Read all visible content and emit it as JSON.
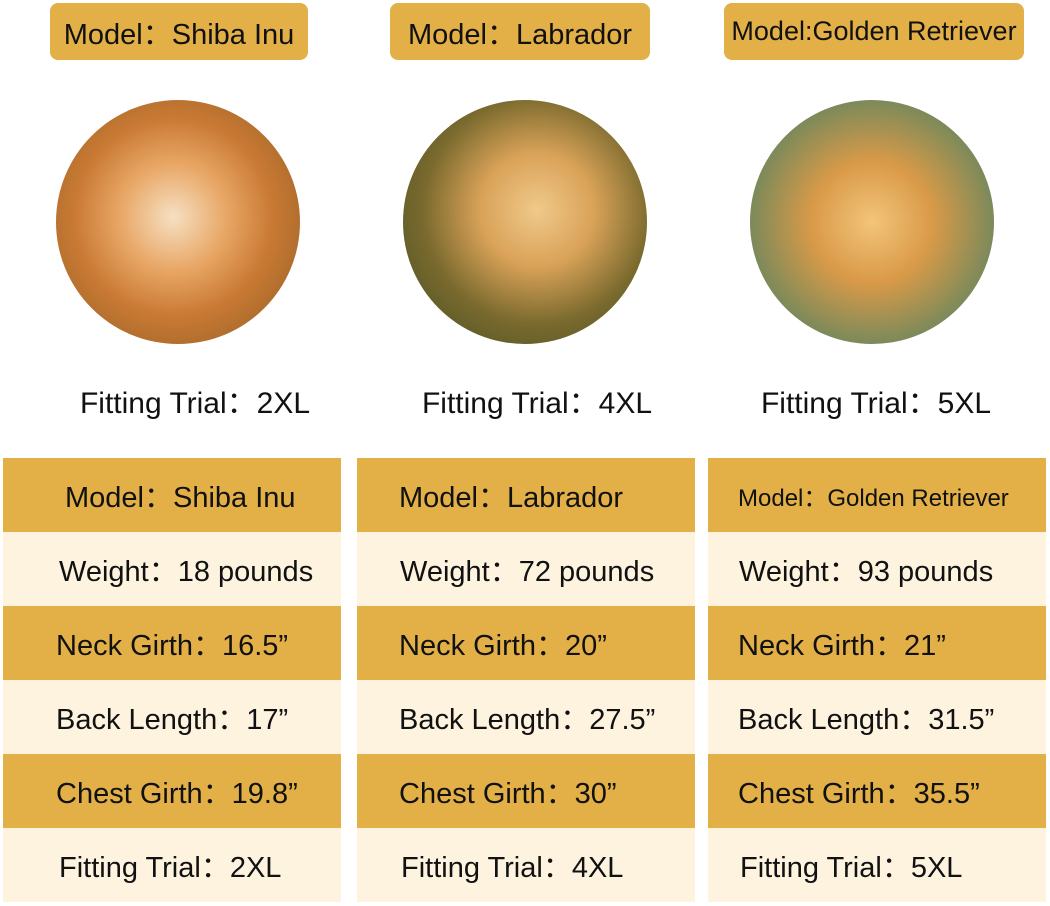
{
  "dogs": [
    {
      "header": "Model：Shiba Inu",
      "photo": "shiba-inu-photo",
      "fitting": "Fitting Trial：2XL",
      "table": {
        "model": "Model：Shiba Inu",
        "weight": "Weight：18 pounds",
        "neck": "Neck Girth：16.5”",
        "back": "Back Length：17”",
        "chest": "Chest Girth：19.8”",
        "fitting": "Fitting Trial：2XL"
      }
    },
    {
      "header": "Model：Labrador",
      "photo": "labrador-photo",
      "fitting": "Fitting Trial：4XL",
      "table": {
        "model": "Model：Labrador",
        "weight": "Weight：72 pounds",
        "neck": "Neck Girth：20”",
        "back": "Back Length：27.5”",
        "chest": "Chest Girth：30”",
        "fitting": "Fitting Trial：4XL"
      }
    },
    {
      "header": "Model:Golden Retriever",
      "photo": "golden-retriever-photo",
      "fitting": "Fitting Trial：5XL",
      "table": {
        "model": "Model：Golden Retriever",
        "weight": "Weight：93 pounds",
        "neck": "Neck Girth：21”",
        "back": "Back Length：31.5”",
        "chest": "Chest Girth：35.5”",
        "fitting": "Fitting Trial：5XL"
      }
    }
  ],
  "colors": {
    "gold": "#E2B047",
    "cream": "#FDF3DF"
  }
}
